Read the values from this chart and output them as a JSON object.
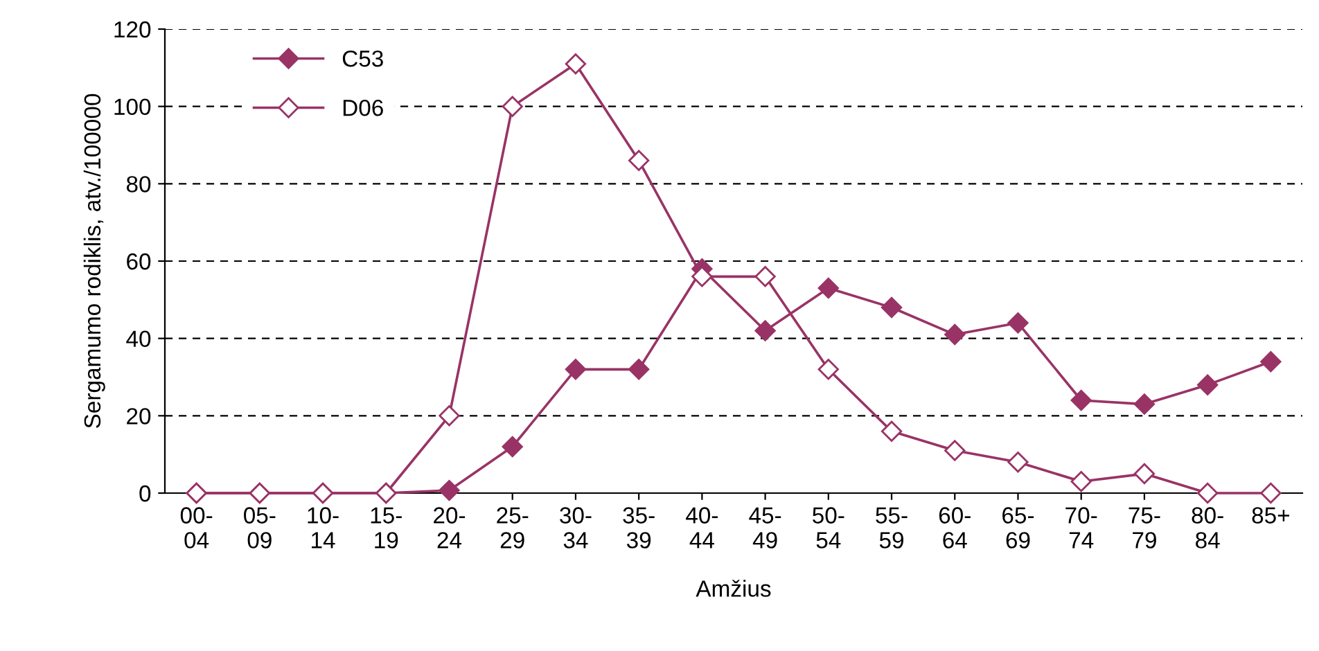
{
  "chart_data": {
    "type": "line",
    "xlabel": "Amžius",
    "ylabel": "Sergamumo rodiklis, atv./100000",
    "categories": [
      "00-\n04",
      "05-\n09",
      "10-\n14",
      "15-\n19",
      "20-\n24",
      "25-\n29",
      "30-\n34",
      "35-\n39",
      "40-\n44",
      "45-\n49",
      "50-\n54",
      "55-\n59",
      "60-\n64",
      "65-\n69",
      "70-\n74",
      "75-\n79",
      "80-\n84",
      "85+"
    ],
    "series": [
      {
        "name": "C53",
        "color": "#993366",
        "values": [
          0,
          0,
          0,
          0,
          0.7,
          12,
          32,
          32,
          58,
          42,
          53,
          48,
          41,
          44,
          24,
          23,
          28,
          34
        ]
      },
      {
        "name": "D06",
        "color": "#993366",
        "values": [
          0,
          0,
          0,
          0,
          20,
          100,
          111,
          86,
          56,
          56,
          32,
          16,
          11,
          8,
          3,
          5,
          0,
          0
        ]
      }
    ],
    "ylim": [
      0,
      120
    ],
    "yticks": [
      0,
      20,
      40,
      60,
      80,
      100,
      120
    ],
    "grid": "y",
    "legend": "top left",
    "marker": "diamond",
    "line_style": "solid"
  }
}
